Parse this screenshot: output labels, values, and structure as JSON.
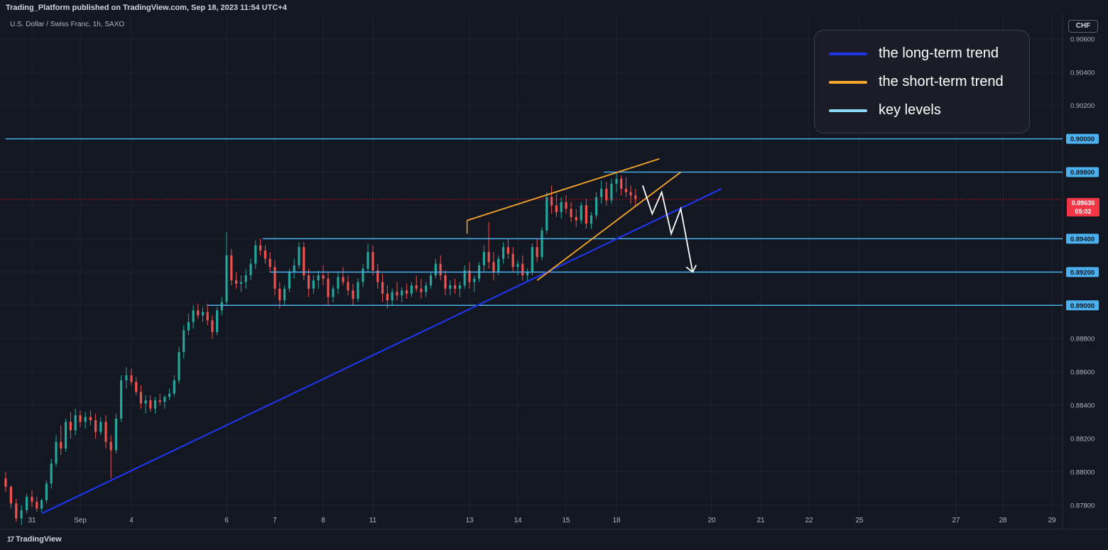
{
  "header": {
    "published": "Trading_Platform published on TradingView.com, Sep 18, 2023 11:54 UTC+4",
    "symbol": "U.S. Dollar / Swiss Franc, 1h, SAXO",
    "currency": "CHF"
  },
  "footer": {
    "brand": "TradingView",
    "logo": "17"
  },
  "legend": [
    {
      "label": "the long-term trend",
      "color": "#1e35e6"
    },
    {
      "label": "the short-term trend",
      "color": "#f7a72c"
    },
    {
      "label": "key levels",
      "color": "#8ed6f5"
    }
  ],
  "current_price": {
    "value": "0.89636",
    "countdown": "05:02"
  },
  "colors": {
    "up": "#26a69a",
    "down": "#ef5350",
    "background": "#131722",
    "key_level": "#4ab0ee",
    "price_line": "#f23645"
  },
  "chart_data": {
    "type": "candlestick",
    "ylim": [
      0.8768,
      0.9074
    ],
    "y_ticks": [
      "0.87800",
      "0.88000",
      "0.88200",
      "0.88400",
      "0.88600",
      "0.88800",
      "0.89000",
      "0.89200",
      "0.89400",
      "0.89600",
      "0.89800",
      "0.90000",
      "0.90200",
      "0.90400",
      "0.90600"
    ],
    "x_ticks": [
      {
        "label": "31",
        "x": 0.0
      },
      {
        "label": "Sep",
        "x": 1.0
      },
      {
        "label": "4",
        "x": 2.0
      },
      {
        "label": "6",
        "x": 4.0
      },
      {
        "label": "7",
        "x": 5.0
      },
      {
        "label": "8",
        "x": 6.0
      },
      {
        "label": "11",
        "x": 7.0
      },
      {
        "label": "13",
        "x": 9.0
      },
      {
        "label": "14",
        "x": 10.0
      },
      {
        "label": "15",
        "x": 11.0
      },
      {
        "label": "18",
        "x": 12.0
      },
      {
        "label": "20",
        "x": 14.0
      },
      {
        "label": "21",
        "x": 15.0
      },
      {
        "label": "22",
        "x": 16.0
      },
      {
        "label": "25",
        "x": 17.0
      },
      {
        "label": "27",
        "x": 19.0
      },
      {
        "label": "28",
        "x": 20.0
      },
      {
        "label": "29",
        "x": 21.0
      }
    ],
    "key_levels": [
      {
        "value": 0.9,
        "label": "0.90000",
        "from": -0.5
      },
      {
        "value": 0.898,
        "label": "0.89800",
        "from": 11.75
      },
      {
        "value": 0.894,
        "label": "0.89400",
        "from": 4.75
      },
      {
        "value": 0.892,
        "label": "0.89200",
        "from": 4.9
      },
      {
        "value": 0.89,
        "label": "0.89000",
        "from": 3.6
      }
    ],
    "long_term_trend": [
      [
        0.2,
        0.8775
      ],
      [
        14.2,
        0.897
      ]
    ],
    "short_term_trend_upper": [
      [
        8.95,
        0.8951
      ],
      [
        12.9,
        0.8988
      ]
    ],
    "short_term_trend_lower": [
      [
        10.4,
        0.8915
      ],
      [
        13.35,
        0.898
      ]
    ],
    "projection": [
      [
        12.55,
        0.8972
      ],
      [
        12.75,
        0.8955
      ],
      [
        12.95,
        0.8968
      ],
      [
        13.15,
        0.8943
      ],
      [
        13.35,
        0.8958
      ],
      [
        13.6,
        0.892
      ]
    ],
    "current_price": 0.89636,
    "candles": [
      [
        -0.5,
        0.8796,
        0.88,
        0.8788,
        0.8791
      ],
      [
        -0.4,
        0.8791,
        0.8792,
        0.8778,
        0.8781
      ],
      [
        -0.3,
        0.8781,
        0.8784,
        0.877,
        0.8772
      ],
      [
        -0.2,
        0.8772,
        0.878,
        0.8768,
        0.8777
      ],
      [
        -0.1,
        0.8777,
        0.8787,
        0.8775,
        0.8785
      ],
      [
        0.0,
        0.8785,
        0.8789,
        0.8779,
        0.8782
      ],
      [
        0.1,
        0.8782,
        0.8785,
        0.8776,
        0.8778
      ],
      [
        0.2,
        0.8778,
        0.8784,
        0.8776,
        0.8783
      ],
      [
        0.3,
        0.8783,
        0.8795,
        0.8781,
        0.8793
      ],
      [
        0.4,
        0.8793,
        0.8808,
        0.879,
        0.8805
      ],
      [
        0.5,
        0.8805,
        0.8822,
        0.8803,
        0.8818
      ],
      [
        0.6,
        0.8818,
        0.8828,
        0.881,
        0.8814
      ],
      [
        0.7,
        0.8814,
        0.8832,
        0.8812,
        0.883
      ],
      [
        0.8,
        0.883,
        0.8836,
        0.882,
        0.8825
      ],
      [
        0.9,
        0.8825,
        0.8838,
        0.8822,
        0.8834
      ],
      [
        1.0,
        0.8834,
        0.8837,
        0.8827,
        0.883
      ],
      [
        1.1,
        0.883,
        0.8836,
        0.8826,
        0.8833
      ],
      [
        1.2,
        0.8833,
        0.8837,
        0.8828,
        0.8831
      ],
      [
        1.3,
        0.8831,
        0.8835,
        0.882,
        0.8824
      ],
      [
        1.4,
        0.8824,
        0.8833,
        0.8822,
        0.883
      ],
      [
        1.5,
        0.883,
        0.8834,
        0.8814,
        0.8818
      ],
      [
        1.6,
        0.8818,
        0.8822,
        0.8796,
        0.8813
      ],
      [
        1.7,
        0.8813,
        0.8835,
        0.8811,
        0.8832
      ],
      [
        1.8,
        0.8832,
        0.8858,
        0.883,
        0.8855
      ],
      [
        1.9,
        0.8855,
        0.8863,
        0.885,
        0.8858
      ],
      [
        2.0,
        0.8858,
        0.8862,
        0.8852,
        0.8854
      ],
      [
        2.1,
        0.8854,
        0.8857,
        0.8846,
        0.8848
      ],
      [
        2.2,
        0.8848,
        0.8852,
        0.8838,
        0.8841
      ],
      [
        2.3,
        0.8841,
        0.8846,
        0.8835,
        0.8843
      ],
      [
        2.4,
        0.8843,
        0.8846,
        0.8836,
        0.8838
      ],
      [
        2.5,
        0.8838,
        0.8845,
        0.8835,
        0.8843
      ],
      [
        2.6,
        0.8843,
        0.8847,
        0.884,
        0.8842
      ],
      [
        2.7,
        0.8842,
        0.8846,
        0.8838,
        0.8845
      ],
      [
        2.8,
        0.8845,
        0.885,
        0.8843,
        0.8847
      ],
      [
        2.9,
        0.8847,
        0.8858,
        0.8845,
        0.8855
      ],
      [
        3.0,
        0.8855,
        0.8875,
        0.8853,
        0.8872
      ],
      [
        3.1,
        0.8872,
        0.8888,
        0.8868,
        0.8885
      ],
      [
        3.2,
        0.8885,
        0.8895,
        0.8882,
        0.889
      ],
      [
        3.3,
        0.889,
        0.89,
        0.8886,
        0.8897
      ],
      [
        3.4,
        0.8897,
        0.8901,
        0.8892,
        0.8894
      ],
      [
        3.5,
        0.8894,
        0.8899,
        0.889,
        0.8896
      ],
      [
        3.6,
        0.8896,
        0.8901,
        0.8888,
        0.8891
      ],
      [
        3.7,
        0.8891,
        0.8894,
        0.888,
        0.8884
      ],
      [
        3.8,
        0.8884,
        0.8899,
        0.8882,
        0.8897
      ],
      [
        3.9,
        0.8897,
        0.8905,
        0.8894,
        0.8902
      ],
      [
        4.0,
        0.8902,
        0.8944,
        0.89,
        0.893
      ],
      [
        4.1,
        0.893,
        0.8934,
        0.8912,
        0.8915
      ],
      [
        4.2,
        0.8915,
        0.892,
        0.891,
        0.8913
      ],
      [
        4.3,
        0.8913,
        0.8918,
        0.8908,
        0.8914
      ],
      [
        4.4,
        0.8914,
        0.8922,
        0.891,
        0.8918
      ],
      [
        4.5,
        0.8918,
        0.8928,
        0.8915,
        0.8925
      ],
      [
        4.6,
        0.8925,
        0.8939,
        0.8922,
        0.8936
      ],
      [
        4.7,
        0.8936,
        0.894,
        0.893,
        0.8933
      ],
      [
        4.8,
        0.8933,
        0.8936,
        0.8925,
        0.8928
      ],
      [
        4.9,
        0.8928,
        0.8932,
        0.892,
        0.8923
      ],
      [
        5.0,
        0.8923,
        0.8927,
        0.8906,
        0.891
      ],
      [
        5.1,
        0.891,
        0.8914,
        0.8898,
        0.8903
      ],
      [
        5.2,
        0.8903,
        0.8912,
        0.89,
        0.891
      ],
      [
        5.3,
        0.891,
        0.8922,
        0.8908,
        0.892
      ],
      [
        5.4,
        0.892,
        0.8928,
        0.8916,
        0.8924
      ],
      [
        5.5,
        0.8924,
        0.8938,
        0.8922,
        0.8935
      ],
      [
        5.6,
        0.8935,
        0.8938,
        0.8915,
        0.8918
      ],
      [
        5.7,
        0.8918,
        0.8922,
        0.8905,
        0.891
      ],
      [
        5.8,
        0.891,
        0.8918,
        0.8907,
        0.8915
      ],
      [
        5.9,
        0.8915,
        0.8921,
        0.891,
        0.8918
      ],
      [
        6.0,
        0.8918,
        0.8924,
        0.8912,
        0.8916
      ],
      [
        6.1,
        0.8916,
        0.892,
        0.89,
        0.8905
      ],
      [
        6.2,
        0.8905,
        0.8912,
        0.8902,
        0.891
      ],
      [
        6.3,
        0.891,
        0.892,
        0.8907,
        0.8917
      ],
      [
        6.4,
        0.8917,
        0.8923,
        0.8912,
        0.8914
      ],
      [
        6.5,
        0.8914,
        0.8918,
        0.8906,
        0.8909
      ],
      [
        6.6,
        0.8909,
        0.8913,
        0.89,
        0.8904
      ],
      [
        6.7,
        0.8904,
        0.8916,
        0.8902,
        0.8914
      ],
      [
        6.8,
        0.8914,
        0.8925,
        0.8911,
        0.8922
      ],
      [
        6.9,
        0.8922,
        0.8937,
        0.892,
        0.8932
      ],
      [
        7.0,
        0.8932,
        0.8936,
        0.8918,
        0.8921
      ],
      [
        7.1,
        0.8921,
        0.8925,
        0.891,
        0.8914
      ],
      [
        7.2,
        0.8914,
        0.8919,
        0.8902,
        0.8907
      ],
      [
        7.3,
        0.8907,
        0.8912,
        0.8898,
        0.8903
      ],
      [
        7.4,
        0.8903,
        0.891,
        0.89,
        0.8908
      ],
      [
        7.5,
        0.8908,
        0.8914,
        0.8903,
        0.8906
      ],
      [
        7.6,
        0.8906,
        0.8911,
        0.8902,
        0.8909
      ],
      [
        7.7,
        0.8909,
        0.8913,
        0.8904,
        0.8907
      ],
      [
        7.8,
        0.8907,
        0.8914,
        0.8905,
        0.8912
      ],
      [
        7.9,
        0.8912,
        0.8918,
        0.8908,
        0.891
      ],
      [
        8.0,
        0.891,
        0.8916,
        0.8904,
        0.8908
      ],
      [
        8.1,
        0.8908,
        0.8914,
        0.8905,
        0.8912
      ],
      [
        8.2,
        0.8912,
        0.892,
        0.891,
        0.8918
      ],
      [
        8.3,
        0.8918,
        0.8928,
        0.8916,
        0.8925
      ],
      [
        8.4,
        0.8925,
        0.893,
        0.8915,
        0.8918
      ],
      [
        8.5,
        0.8918,
        0.8921,
        0.8906,
        0.891
      ],
      [
        8.6,
        0.891,
        0.8915,
        0.8906,
        0.8912
      ],
      [
        8.7,
        0.8912,
        0.8916,
        0.8907,
        0.891
      ],
      [
        8.8,
        0.891,
        0.8914,
        0.8905,
        0.8912
      ],
      [
        8.9,
        0.8912,
        0.8924,
        0.891,
        0.8921
      ],
      [
        9.0,
        0.8921,
        0.8926,
        0.891,
        0.8914
      ],
      [
        9.1,
        0.8914,
        0.8918,
        0.8908,
        0.8916
      ],
      [
        9.2,
        0.8916,
        0.8926,
        0.8914,
        0.8924
      ],
      [
        9.3,
        0.8924,
        0.8936,
        0.892,
        0.8932
      ],
      [
        9.4,
        0.8932,
        0.895,
        0.8922,
        0.8926
      ],
      [
        9.5,
        0.8926,
        0.8932,
        0.8915,
        0.892
      ],
      [
        9.6,
        0.892,
        0.893,
        0.8918,
        0.8928
      ],
      [
        9.7,
        0.8928,
        0.8938,
        0.8925,
        0.8935
      ],
      [
        9.8,
        0.8935,
        0.894,
        0.8928,
        0.8931
      ],
      [
        9.9,
        0.8931,
        0.8935,
        0.892,
        0.8923
      ],
      [
        10.0,
        0.8923,
        0.8927,
        0.8918,
        0.8925
      ],
      [
        10.1,
        0.8925,
        0.893,
        0.8915,
        0.8918
      ],
      [
        10.2,
        0.8918,
        0.8922,
        0.8914,
        0.892
      ],
      [
        10.3,
        0.892,
        0.8937,
        0.8918,
        0.8935
      ],
      [
        10.4,
        0.8935,
        0.894,
        0.8926,
        0.8929
      ],
      [
        10.5,
        0.8929,
        0.8947,
        0.8927,
        0.8945
      ],
      [
        10.6,
        0.8945,
        0.8968,
        0.8943,
        0.8965
      ],
      [
        10.7,
        0.8965,
        0.8972,
        0.8955,
        0.896
      ],
      [
        10.8,
        0.896,
        0.8967,
        0.8953,
        0.8956
      ],
      [
        10.9,
        0.8956,
        0.8965,
        0.8952,
        0.8962
      ],
      [
        11.0,
        0.8962,
        0.8966,
        0.8955,
        0.8958
      ],
      [
        11.1,
        0.8958,
        0.8962,
        0.895,
        0.8953
      ],
      [
        11.2,
        0.8953,
        0.8958,
        0.8947,
        0.8951
      ],
      [
        11.3,
        0.8951,
        0.8962,
        0.8949,
        0.896
      ],
      [
        11.4,
        0.896,
        0.8964,
        0.8946,
        0.8949
      ],
      [
        11.5,
        0.8949,
        0.8956,
        0.8946,
        0.8954
      ],
      [
        11.6,
        0.8954,
        0.8968,
        0.8952,
        0.8965
      ],
      [
        11.7,
        0.8965,
        0.8975,
        0.8961,
        0.897
      ],
      [
        11.8,
        0.897,
        0.8974,
        0.896,
        0.8963
      ],
      [
        11.9,
        0.8963,
        0.8976,
        0.8961,
        0.8973
      ],
      [
        12.0,
        0.8973,
        0.898,
        0.8968,
        0.8976
      ],
      [
        12.1,
        0.8976,
        0.8978,
        0.8966,
        0.897
      ],
      [
        12.2,
        0.897,
        0.8977,
        0.8965,
        0.8968
      ],
      [
        12.3,
        0.8968,
        0.8972,
        0.8961,
        0.8966
      ],
      [
        12.4,
        0.8966,
        0.897,
        0.896,
        0.8964
      ]
    ]
  }
}
